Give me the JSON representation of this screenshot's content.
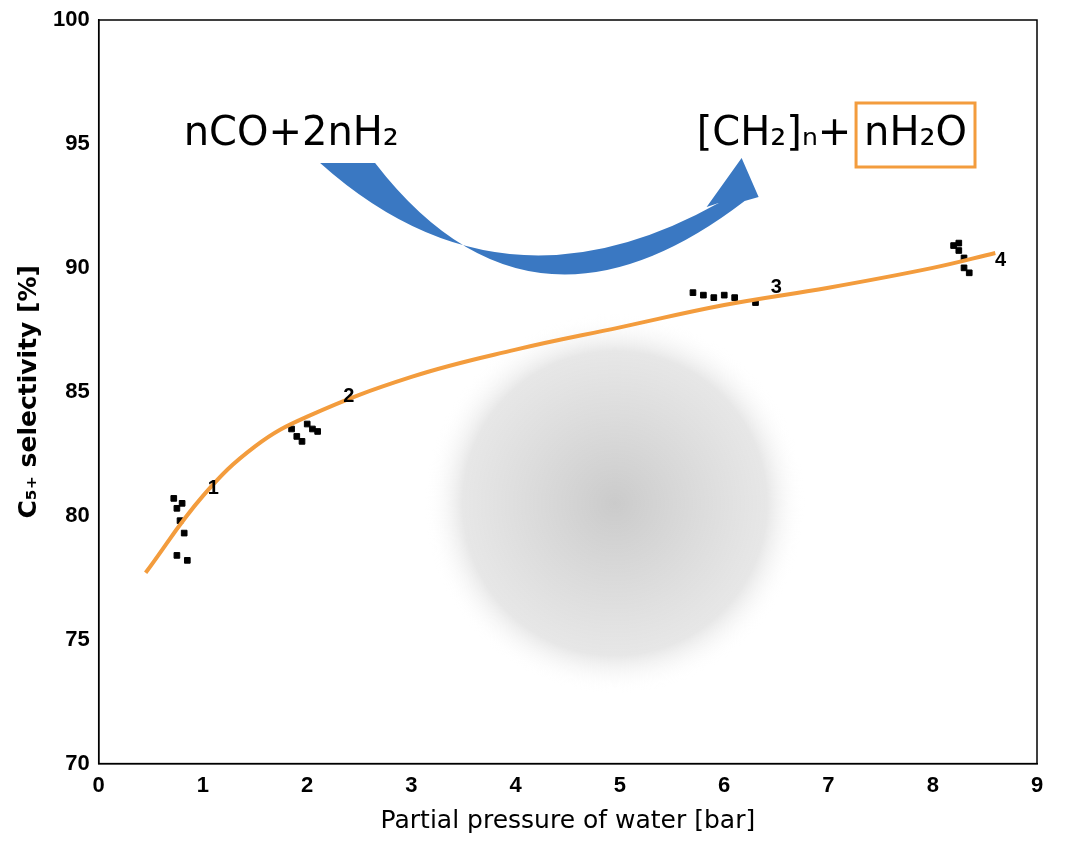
{
  "chart_data": {
    "type": "scatter",
    "x_label": "Partial pressure of water [bar]",
    "y_label": "C₅₊ selectivity [%]",
    "xlim": [
      0,
      9
    ],
    "xticks": [
      0,
      1,
      2,
      3,
      4,
      5,
      6,
      7,
      8,
      9
    ],
    "ylim": [
      70,
      100
    ],
    "yticks": [
      70,
      75,
      80,
      85,
      90,
      95,
      100
    ],
    "grid": false,
    "series": [
      {
        "type": "scatter",
        "color": "#000000",
        "marker": "square",
        "x": [
          0.72,
          0.75,
          0.8,
          0.78,
          0.82,
          0.75,
          0.85,
          1.85,
          1.9,
          2.0,
          2.05,
          2.1,
          1.95,
          5.7,
          5.8,
          5.9,
          6.0,
          6.1,
          6.3,
          8.2,
          8.25,
          8.3,
          8.3,
          8.35,
          8.25
        ],
        "values": [
          80.7,
          80.3,
          80.5,
          79.8,
          79.3,
          78.4,
          78.2,
          83.5,
          83.2,
          83.7,
          83.5,
          83.4,
          83.0,
          89.0,
          88.9,
          88.8,
          88.9,
          88.8,
          88.6,
          90.9,
          90.7,
          90.4,
          90.0,
          89.8,
          91.0
        ]
      },
      {
        "type": "line",
        "color": "#f39c3d",
        "line_style": "solid",
        "x": [
          0.45,
          1,
          1.5,
          2,
          3,
          4,
          5,
          6,
          7,
          8,
          8.6
        ],
        "values": [
          77.7,
          80.8,
          82.8,
          84.0,
          85.6,
          86.7,
          87.6,
          88.5,
          89.2,
          90.0,
          90.6
        ]
      }
    ],
    "point_labels": [
      {
        "text": "1",
        "x": 1.1,
        "y": 81.1
      },
      {
        "text": "2",
        "x": 2.4,
        "y": 84.8
      },
      {
        "text": "3",
        "x": 6.5,
        "y": 89.2
      },
      {
        "text": "4",
        "x": 8.65,
        "y": 90.3
      }
    ],
    "reaction": {
      "reactants": "nCO+2nH₂",
      "products": "[CH₂]ₙ+",
      "boxed_product": "nH₂O"
    }
  }
}
